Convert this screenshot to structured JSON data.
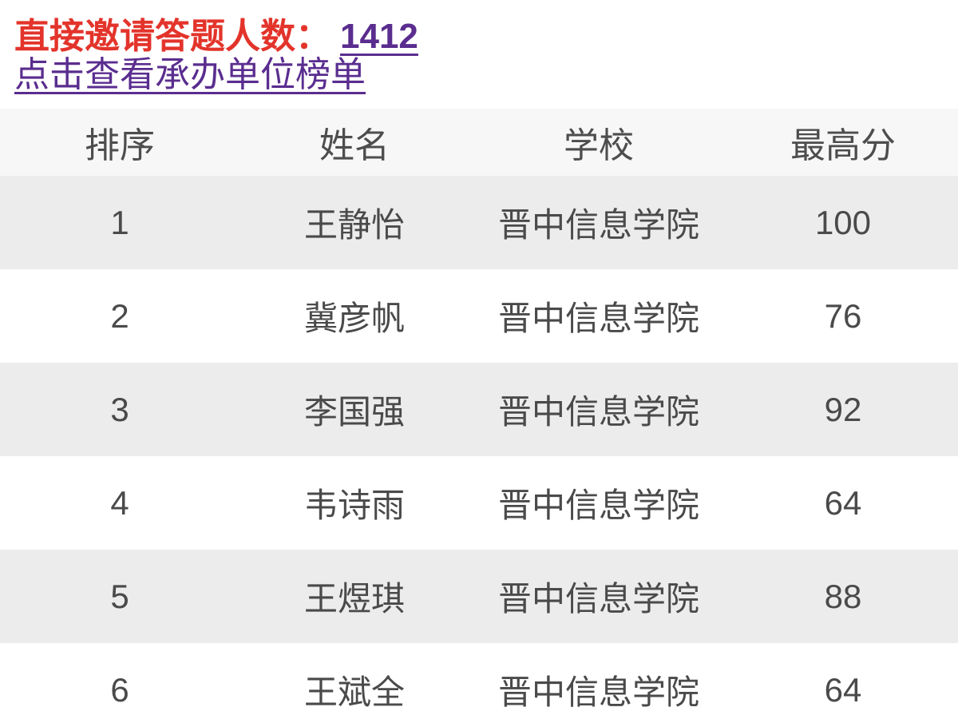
{
  "top": {
    "invite_label": "直接邀请答题人数：",
    "invite_count": "1412",
    "organizer_link": "点击查看承办单位榜单"
  },
  "table": {
    "columns": {
      "rank": "排序",
      "name": "姓名",
      "school": "学校",
      "score": "最高分"
    },
    "rows": [
      {
        "rank": "1",
        "name": "王静怡",
        "school": "晋中信息学院",
        "score": "100"
      },
      {
        "rank": "2",
        "name": "冀彦帆",
        "school": "晋中信息学院",
        "score": "76"
      },
      {
        "rank": "3",
        "name": "李国强",
        "school": "晋中信息学院",
        "score": "92"
      },
      {
        "rank": "4",
        "name": "韦诗雨",
        "school": "晋中信息学院",
        "score": "64"
      },
      {
        "rank": "5",
        "name": "王煜琪",
        "school": "晋中信息学院",
        "score": "88"
      },
      {
        "rank": "6",
        "name": "王斌全",
        "school": "晋中信息学院",
        "score": "64"
      }
    ]
  },
  "colors": {
    "accent_red": "#e3342b",
    "link_purple": "#5a2d8f",
    "row_alt_gray": "#ececec",
    "header_bg": "#f7f7f7",
    "table_text": "#4a4a4a"
  }
}
